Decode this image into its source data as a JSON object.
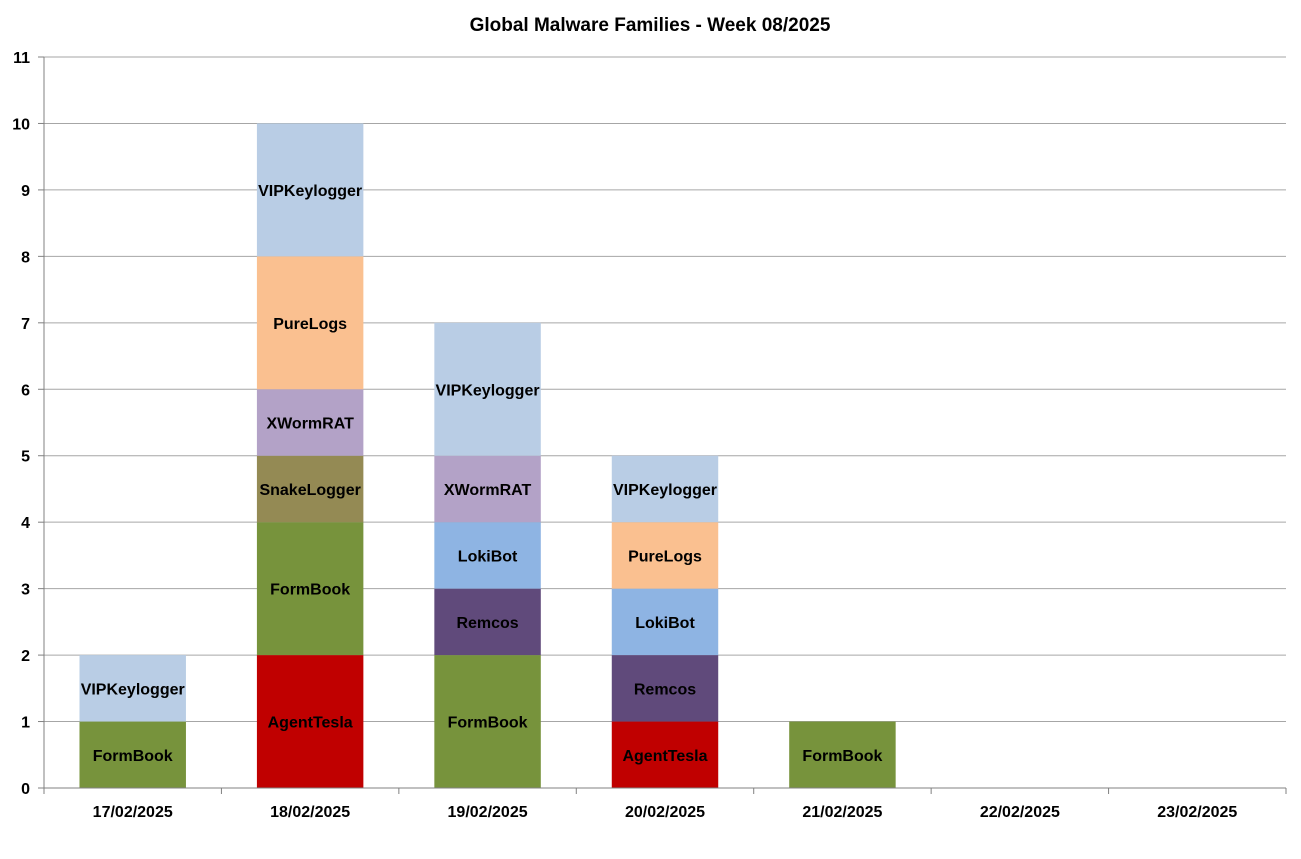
{
  "chart_data": {
    "type": "bar",
    "stacked": true,
    "title": "Global Malware Families - Week 08/2025",
    "xlabel": "",
    "ylabel": "",
    "ylim": [
      0,
      11
    ],
    "yticks": [
      "0",
      "1",
      "2",
      "3",
      "4",
      "5",
      "6",
      "7",
      "8",
      "9",
      "10",
      "11"
    ],
    "grid": true,
    "legend": "none",
    "categories": [
      "17/02/2025",
      "18/02/2025",
      "19/02/2025",
      "20/02/2025",
      "21/02/2025",
      "22/02/2025",
      "23/02/2025"
    ],
    "colors": {
      "AgentTesla": "#c00000",
      "FormBook": "#77933c",
      "SnakeLogger": "#948a54",
      "Remcos": "#604a7b",
      "LokiBot": "#8eb4e3",
      "XWormRAT": "#b3a2c7",
      "PureLogs": "#fac090",
      "VIPKeylogger": "#b9cde5"
    },
    "stacks": [
      [
        {
          "name": "FormBook",
          "value": 1
        },
        {
          "name": "VIPKeylogger",
          "value": 1
        }
      ],
      [
        {
          "name": "AgentTesla",
          "value": 2
        },
        {
          "name": "FormBook",
          "value": 2
        },
        {
          "name": "SnakeLogger",
          "value": 1
        },
        {
          "name": "XWormRAT",
          "value": 1
        },
        {
          "name": "PureLogs",
          "value": 2
        },
        {
          "name": "VIPKeylogger",
          "value": 2
        }
      ],
      [
        {
          "name": "FormBook",
          "value": 2
        },
        {
          "name": "Remcos",
          "value": 1
        },
        {
          "name": "LokiBot",
          "value": 1
        },
        {
          "name": "XWormRAT",
          "value": 1
        },
        {
          "name": "VIPKeylogger",
          "value": 2
        }
      ],
      [
        {
          "name": "AgentTesla",
          "value": 1
        },
        {
          "name": "Remcos",
          "value": 1
        },
        {
          "name": "LokiBot",
          "value": 1
        },
        {
          "name": "PureLogs",
          "value": 1
        },
        {
          "name": "VIPKeylogger",
          "value": 1
        }
      ],
      [
        {
          "name": "FormBook",
          "value": 1
        }
      ],
      [],
      []
    ]
  }
}
